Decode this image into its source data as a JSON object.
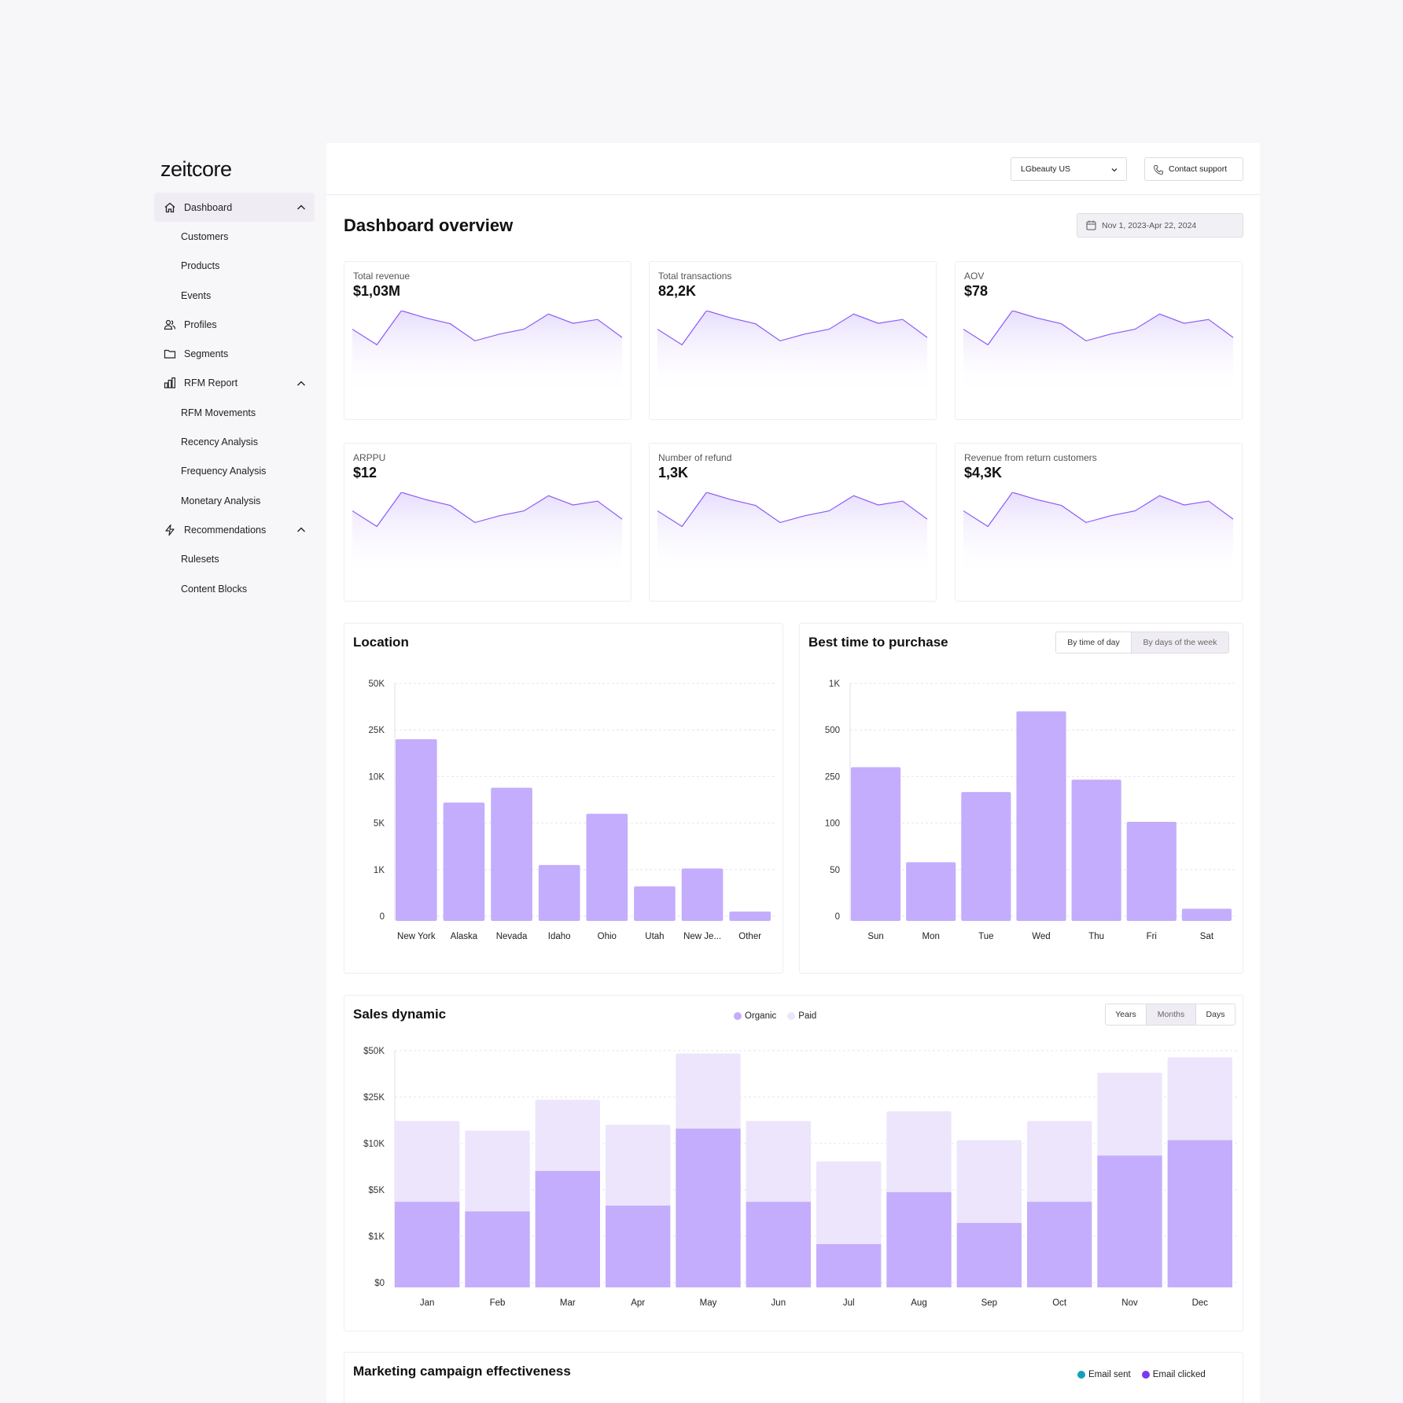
{
  "app": {
    "logo": "zeitcore"
  },
  "sidebar": {
    "items": [
      {
        "label": "Dashboard",
        "icon": "home-icon",
        "level": 0,
        "active": true,
        "expanded": true
      },
      {
        "label": "Customers",
        "level": 1
      },
      {
        "label": "Products",
        "level": 1
      },
      {
        "label": "Events",
        "level": 1
      },
      {
        "label": "Profiles",
        "icon": "users-icon",
        "level": 0
      },
      {
        "label": "Segments",
        "icon": "folder-icon",
        "level": 0
      },
      {
        "label": "RFM Report",
        "icon": "bar-chart-icon",
        "level": 0,
        "expanded": true
      },
      {
        "label": "RFM Movements",
        "level": 1
      },
      {
        "label": "Recency Analysis",
        "level": 1
      },
      {
        "label": "Frequency Analysis",
        "level": 1
      },
      {
        "label": "Monetary Analysis",
        "level": 1
      },
      {
        "label": "Recommendations",
        "icon": "lightning-icon",
        "level": 0,
        "expanded": true
      },
      {
        "label": "Rulesets",
        "level": 1
      },
      {
        "label": "Content Blocks",
        "level": 1
      }
    ]
  },
  "header": {
    "store_select": "LGbeauty US",
    "contact_label": "Contact support"
  },
  "page": {
    "title": "Dashboard overview",
    "date_range": "Nov 1, 2023-Apr 22, 2024"
  },
  "kpis": [
    {
      "label": "Total revenue",
      "value": "$1,03M"
    },
    {
      "label": "Total transactions",
      "value": "82,2K"
    },
    {
      "label": "AOV",
      "value": "$78"
    },
    {
      "label": "ARPPU",
      "value": "$12"
    },
    {
      "label": "Number of refund",
      "value": "1,3K"
    },
    {
      "label": "Revenue from return customers",
      "value": "$4,3K"
    }
  ],
  "colors": {
    "accent": "#8b5cf6",
    "bar": "#c4adfc",
    "bar_light": "#ece5fc",
    "email_sent": "#14a1b8",
    "email_clicked": "#7c3aed"
  },
  "location": {
    "title": "Location"
  },
  "best_time": {
    "title": "Best time to purchase",
    "toggle": [
      "By time of day",
      "By days of the week"
    ]
  },
  "sales": {
    "title": "Sales dynamic",
    "legend": [
      "Organic",
      "Paid"
    ],
    "toggle": [
      "Years",
      "Months",
      "Days"
    ]
  },
  "marketing": {
    "title": "Marketing campaign effectiveness",
    "legend": [
      "Email sent",
      "Email clicked"
    ]
  },
  "chart_data": [
    {
      "type": "line",
      "name": "kpi-sparkline",
      "x": [
        0,
        1,
        2,
        3,
        4,
        5,
        6,
        7,
        8,
        9,
        10,
        11
      ],
      "values": [
        0.62,
        0.3,
        1.0,
        0.85,
        0.73,
        0.38,
        0.52,
        0.62,
        0.93,
        0.74,
        0.82,
        0.45
      ]
    },
    {
      "type": "bar",
      "title": "Location",
      "categories": [
        "New York",
        "Alaska",
        "Nevada",
        "Idaho",
        "Ohio",
        "Utah",
        "New Je...",
        "Other"
      ],
      "values": [
        22000,
        7200,
        8800,
        1400,
        6000,
        640,
        1100,
        100
      ],
      "yticks": [
        "0",
        "1K",
        "5K",
        "10K",
        "25K",
        "50K"
      ]
    },
    {
      "type": "bar",
      "title": "Best time to purchase",
      "categories": [
        "Sun",
        "Mon",
        "Tue",
        "Wed",
        "Thu",
        "Fri",
        "Sat"
      ],
      "values": [
        300,
        58,
        200,
        700,
        240,
        104,
        8
      ],
      "yticks": [
        "0",
        "50",
        "100",
        "250",
        "500",
        "1K"
      ]
    },
    {
      "type": "bar",
      "title": "Sales dynamic",
      "stacked": true,
      "categories": [
        "Jan",
        "Feb",
        "Mar",
        "Apr",
        "May",
        "Jun",
        "Jul",
        "Aug",
        "Sep",
        "Oct",
        "Nov",
        "Dec"
      ],
      "yticks": [
        "$0",
        "$1K",
        "$5K",
        "$10K",
        "$25K",
        "$50K"
      ],
      "series": [
        {
          "name": "Organic",
          "values": [
            0.42,
            0.37,
            0.58,
            0.4,
            0.8,
            0.42,
            0.2,
            0.47,
            0.31,
            0.42,
            0.66,
            0.74
          ]
        },
        {
          "name": "Paid",
          "values": [
            0.84,
            0.79,
            0.95,
            0.82,
            1.19,
            0.84,
            0.63,
            0.89,
            0.74,
            0.84,
            1.09,
            1.17
          ]
        }
      ]
    }
  ]
}
